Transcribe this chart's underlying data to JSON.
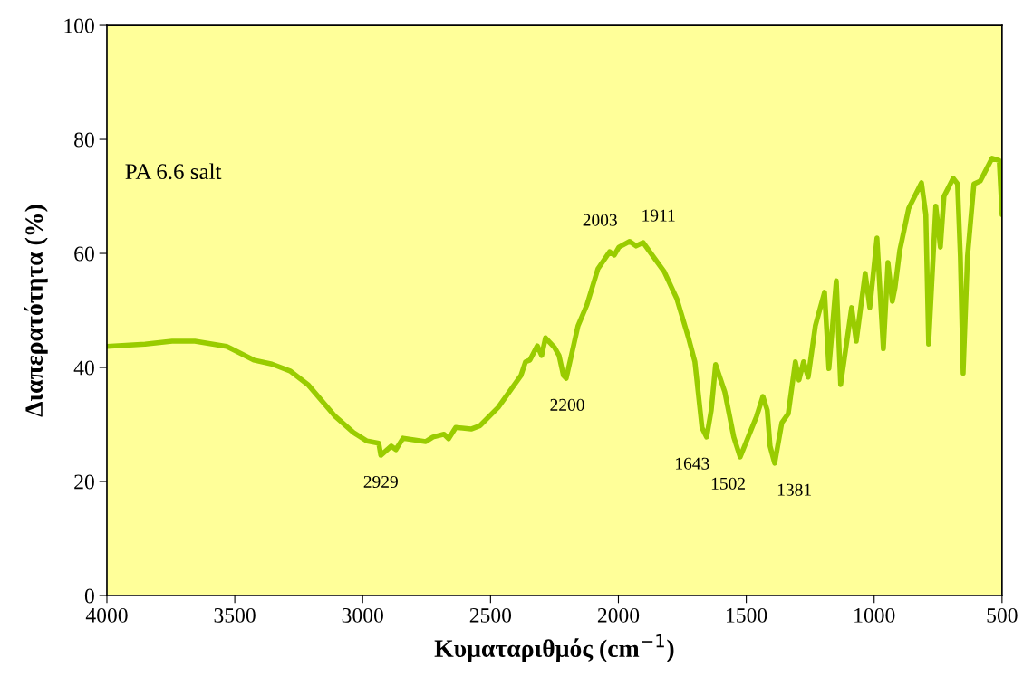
{
  "chart_data": {
    "type": "line",
    "xlabel": "Κυματαριθμός (cm$^{−1}$)",
    "ylabel": "Διαπερατότητα (%)",
    "xlim": [
      4000,
      500
    ],
    "xticks": [
      4000,
      3500,
      3000,
      2500,
      2000,
      1500,
      1000,
      500
    ],
    "ylim": [
      0,
      100
    ],
    "yticks": [
      0,
      20,
      40,
      60,
      80,
      100
    ],
    "grid": false,
    "legend": false,
    "series": [
      {
        "color": "#99cc00",
        "x": [
          4000,
          3851,
          3745,
          3656,
          3532,
          3426,
          3355,
          3284,
          3214,
          3107,
          3036,
          2983,
          2937,
          2929,
          2888,
          2870,
          2842,
          2753,
          2725,
          2682,
          2664,
          2636,
          2576,
          2541,
          2470,
          2381,
          2363,
          2346,
          2317,
          2300,
          2285,
          2250,
          2232,
          2215,
          2204,
          2158,
          2123,
          2080,
          2034,
          2016,
          1998,
          1956,
          1931,
          1903,
          1868,
          1821,
          1772,
          1726,
          1701,
          1673,
          1655,
          1637,
          1620,
          1584,
          1549,
          1524,
          1488,
          1460,
          1435,
          1418,
          1407,
          1389,
          1361,
          1336,
          1308,
          1294,
          1276,
          1258,
          1230,
          1194,
          1177,
          1148,
          1131,
          1088,
          1070,
          1035,
          1017,
          989,
          964,
          946,
          929,
          918,
          900,
          865,
          815,
          798,
          787,
          759,
          741,
          727,
          691,
          674,
          663,
          652,
          635,
          610,
          585,
          539,
          511,
          500
        ],
        "values": [
          43.7,
          44.1,
          44.6,
          44.6,
          43.7,
          41.3,
          40.6,
          39.4,
          37.0,
          31.4,
          28.6,
          27.1,
          26.7,
          24.6,
          26.2,
          25.6,
          27.6,
          27.0,
          27.8,
          28.3,
          27.5,
          29.5,
          29.2,
          29.8,
          33.0,
          38.6,
          41.0,
          41.3,
          43.8,
          42.1,
          45.2,
          43.5,
          42.1,
          38.6,
          38.1,
          47.3,
          51.0,
          57.3,
          60.3,
          59.7,
          61.1,
          62.1,
          61.3,
          61.9,
          59.7,
          56.8,
          52.1,
          45.2,
          41.0,
          29.4,
          27.8,
          32.5,
          40.5,
          35.7,
          27.8,
          24.3,
          28.3,
          31.4,
          34.9,
          32.5,
          26.2,
          23.2,
          30.3,
          31.9,
          41.0,
          37.8,
          41.0,
          38.3,
          47.3,
          53.2,
          39.8,
          55.2,
          37.0,
          50.5,
          44.6,
          56.5,
          50.5,
          62.7,
          43.3,
          58.4,
          51.6,
          54.1,
          60.5,
          67.9,
          72.4,
          66.8,
          44.1,
          68.3,
          61.1,
          70.0,
          73.2,
          72.2,
          59.5,
          39.0,
          59.5,
          72.2,
          72.7,
          76.7,
          76.3,
          66.8
        ]
      }
    ],
    "annotations": [
      "PA 6.6 salt",
      {
        "text": "2929",
        "x": 2929,
        "y": 24.6
      },
      {
        "text": "2200",
        "x": 2200,
        "y": 38.1
      },
      {
        "text": "2003",
        "x": 2003,
        "y": 61.1
      },
      {
        "text": "1911",
        "x": 1911,
        "y": 61.9
      },
      {
        "text": "1643",
        "x": 1643,
        "y": 27.8
      },
      {
        "text": "1502",
        "x": 1502,
        "y": 24.3
      },
      {
        "text": "1381",
        "x": 1381,
        "y": 23.2
      }
    ]
  }
}
